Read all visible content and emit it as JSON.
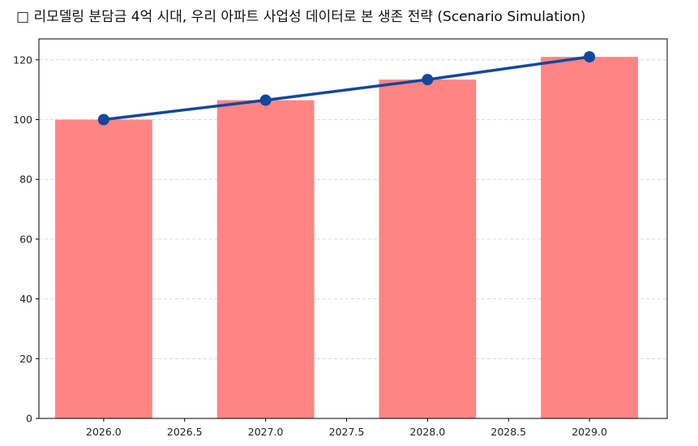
{
  "chart_data": {
    "type": "bar",
    "title": "□ 리모델링 분담금 4억 시대, 우리 아파트 사업성 데이터로 본 생존 전략 (Scenario Simulation)",
    "xlabel": "",
    "ylabel": "",
    "xlim": [
      2025.6,
      2029.48
    ],
    "ylim": [
      0,
      127
    ],
    "x_ticks": [
      "2026.0",
      "2026.5",
      "2027.0",
      "2027.5",
      "2028.0",
      "2028.5",
      "2029.0"
    ],
    "y_ticks": [
      "0",
      "20",
      "40",
      "60",
      "80",
      "100",
      "120"
    ],
    "grid": "y-dashed",
    "bar_width": 0.6,
    "series": [
      {
        "type": "bar",
        "x": [
          2026,
          2027,
          2028,
          2029
        ],
        "values": [
          100,
          106.5,
          113.4,
          121
        ],
        "color": "#ff8585"
      },
      {
        "type": "line",
        "x": [
          2026,
          2027,
          2028,
          2029
        ],
        "values": [
          100,
          106.5,
          113.4,
          121
        ],
        "color": "#12479c"
      }
    ]
  }
}
